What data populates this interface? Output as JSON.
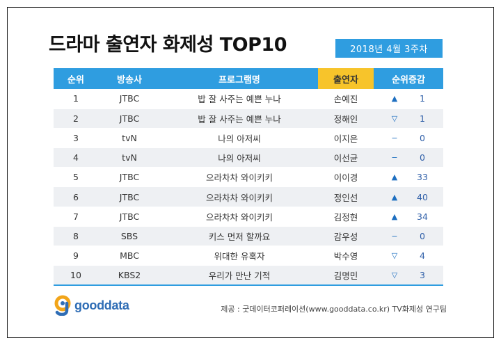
{
  "title": "드라마 출연자 화제성 TOP10",
  "date_badge": "2018년  4월 3주차",
  "columns": {
    "rank": "순위",
    "network": "방송사",
    "program": "프로그램명",
    "cast": "출연자",
    "change": "순위증감"
  },
  "rows": [
    {
      "rank": "1",
      "network": "JTBC",
      "program": "밥 잘 사주는 예쁜 누나",
      "cast": "손예진",
      "trend": "up",
      "symbol": "▲",
      "change": "1"
    },
    {
      "rank": "2",
      "network": "JTBC",
      "program": "밥 잘 사주는 예쁜 누나",
      "cast": "정해인",
      "trend": "down",
      "symbol": "▽",
      "change": "1"
    },
    {
      "rank": "3",
      "network": "tvN",
      "program": "나의 아저씨",
      "cast": "이지은",
      "trend": "same",
      "symbol": "−",
      "change": "0"
    },
    {
      "rank": "4",
      "network": "tvN",
      "program": "나의 아저씨",
      "cast": "이선균",
      "trend": "same",
      "symbol": "−",
      "change": "0"
    },
    {
      "rank": "5",
      "network": "JTBC",
      "program": "으라차차 와이키키",
      "cast": "이이경",
      "trend": "up",
      "symbol": "▲",
      "change": "33"
    },
    {
      "rank": "6",
      "network": "JTBC",
      "program": "으라차차 와이키키",
      "cast": "정인선",
      "trend": "up",
      "symbol": "▲",
      "change": "40"
    },
    {
      "rank": "7",
      "network": "JTBC",
      "program": "으라차차 와이키키",
      "cast": "김정현",
      "trend": "up",
      "symbol": "▲",
      "change": "34"
    },
    {
      "rank": "8",
      "network": "SBS",
      "program": "키스 먼저 할까요",
      "cast": "감우성",
      "trend": "same",
      "symbol": "−",
      "change": "0"
    },
    {
      "rank": "9",
      "network": "MBC",
      "program": "위대한 유혹자",
      "cast": "박수영",
      "trend": "down",
      "symbol": "▽",
      "change": "4"
    },
    {
      "rank": "10",
      "network": "KBS2",
      "program": "우리가 만난 기적",
      "cast": "김명민",
      "trend": "down",
      "symbol": "▽",
      "change": "3"
    }
  ],
  "logo": {
    "text": "gooddata",
    "icon": "gooddata-logo-icon"
  },
  "source": "제공 : 굿데이터코퍼레이션(www.gooddata.co.kr) TV화제성 연구팀",
  "colors": {
    "header": "#2f9de0",
    "highlight": "#f7c42b",
    "row_alt": "#eef0f3",
    "logo": "#2f6db5"
  }
}
